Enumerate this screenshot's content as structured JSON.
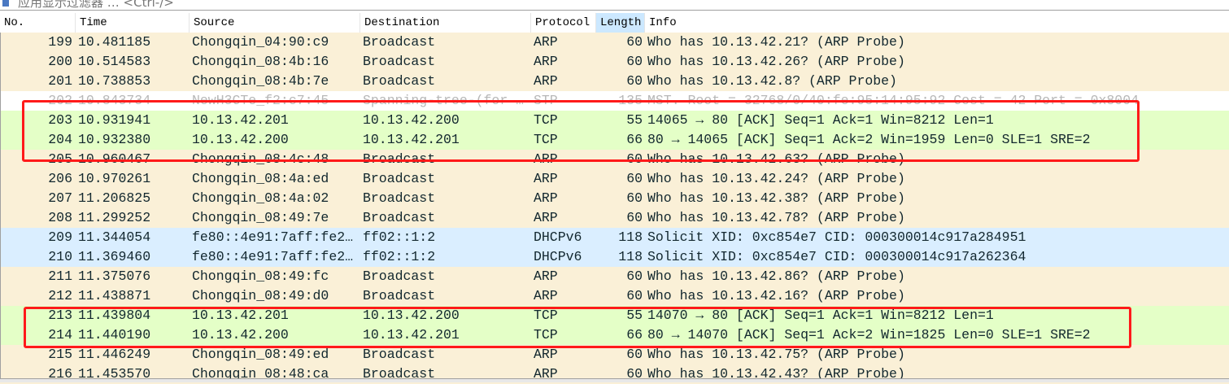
{
  "filter_bar": {
    "placeholder": "应用显示过滤器 … <Ctrl-/>",
    "icon": "bookmark-icon"
  },
  "columns": [
    {
      "label": "No.",
      "sorted": false
    },
    {
      "label": "Time",
      "sorted": false
    },
    {
      "label": "Source",
      "sorted": false
    },
    {
      "label": "Destination",
      "sorted": false
    },
    {
      "label": "Protocol",
      "sorted": false
    },
    {
      "label": "Length",
      "sorted": true
    },
    {
      "label": "Info",
      "sorted": false
    }
  ],
  "colors": {
    "ARP": "#faf0d7",
    "TCP": "#e4ffc7",
    "DHCPv6": "#daeeff",
    "STP": "#ffffff",
    "highlight_box": "#ff1a1a"
  },
  "packets": [
    {
      "no": "199",
      "time": "10.481185",
      "source": "Chongqin_04:90:c9",
      "destination": "Broadcast",
      "protocol": "ARP",
      "length": "60",
      "info": "Who has 10.13.42.21? (ARP Probe)"
    },
    {
      "no": "200",
      "time": "10.514583",
      "source": "Chongqin_08:4b:16",
      "destination": "Broadcast",
      "protocol": "ARP",
      "length": "60",
      "info": "Who has 10.13.42.26? (ARP Probe)"
    },
    {
      "no": "201",
      "time": "10.738853",
      "source": "Chongqin_08:4b:7e",
      "destination": "Broadcast",
      "protocol": "ARP",
      "length": "60",
      "info": "Who has 10.13.42.8? (ARP Probe)"
    },
    {
      "no": "202",
      "time": "10.843734",
      "source": "NewH3CTe_f2:c7:45",
      "destination": "Spanning-tree-(for …",
      "protocol": "STP",
      "length": "135",
      "info": "MST. Root = 32768/0/40:fe:95:14:95:92  Cost = 42  Port = 0x8004"
    },
    {
      "no": "203",
      "time": "10.931941",
      "source": "10.13.42.201",
      "destination": "10.13.42.200",
      "protocol": "TCP",
      "length": "55",
      "info": "14065 → 80 [ACK] Seq=1 Ack=1 Win=8212 Len=1"
    },
    {
      "no": "204",
      "time": "10.932380",
      "source": "10.13.42.200",
      "destination": "10.13.42.201",
      "protocol": "TCP",
      "length": "66",
      "info": "80 → 14065 [ACK] Seq=1 Ack=2 Win=1959 Len=0 SLE=1 SRE=2"
    },
    {
      "no": "205",
      "time": "10.960467",
      "source": "Chongqin_08:4c:48",
      "destination": "Broadcast",
      "protocol": "ARP",
      "length": "60",
      "info": "Who has 10.13.42.63? (ARP Probe)"
    },
    {
      "no": "206",
      "time": "10.970261",
      "source": "Chongqin_08:4a:ed",
      "destination": "Broadcast",
      "protocol": "ARP",
      "length": "60",
      "info": "Who has 10.13.42.24? (ARP Probe)"
    },
    {
      "no": "207",
      "time": "11.206825",
      "source": "Chongqin_08:4a:02",
      "destination": "Broadcast",
      "protocol": "ARP",
      "length": "60",
      "info": "Who has 10.13.42.38? (ARP Probe)"
    },
    {
      "no": "208",
      "time": "11.299252",
      "source": "Chongqin_08:49:7e",
      "destination": "Broadcast",
      "protocol": "ARP",
      "length": "60",
      "info": "Who has 10.13.42.78? (ARP Probe)"
    },
    {
      "no": "209",
      "time": "11.344054",
      "source": "fe80::4e91:7aff:fe2…",
      "destination": "ff02::1:2",
      "protocol": "DHCPv6",
      "length": "118",
      "info": "Solicit XID: 0xc854e7 CID: 000300014c917a284951"
    },
    {
      "no": "210",
      "time": "11.369460",
      "source": "fe80::4e91:7aff:fe2…",
      "destination": "ff02::1:2",
      "protocol": "DHCPv6",
      "length": "118",
      "info": "Solicit XID: 0xc854e7 CID: 000300014c917a262364"
    },
    {
      "no": "211",
      "time": "11.375076",
      "source": "Chongqin_08:49:fc",
      "destination": "Broadcast",
      "protocol": "ARP",
      "length": "60",
      "info": "Who has 10.13.42.86? (ARP Probe)"
    },
    {
      "no": "212",
      "time": "11.438871",
      "source": "Chongqin_08:49:d0",
      "destination": "Broadcast",
      "protocol": "ARP",
      "length": "60",
      "info": "Who has 10.13.42.16? (ARP Probe)"
    },
    {
      "no": "213",
      "time": "11.439804",
      "source": "10.13.42.201",
      "destination": "10.13.42.200",
      "protocol": "TCP",
      "length": "55",
      "info": "14070 → 80 [ACK] Seq=1 Ack=1 Win=8212 Len=1"
    },
    {
      "no": "214",
      "time": "11.440190",
      "source": "10.13.42.200",
      "destination": "10.13.42.201",
      "protocol": "TCP",
      "length": "66",
      "info": "80 → 14070 [ACK] Seq=1 Ack=2 Win=1825 Len=0 SLE=1 SRE=2"
    },
    {
      "no": "215",
      "time": "11.446249",
      "source": "Chongqin_08:49:ed",
      "destination": "Broadcast",
      "protocol": "ARP",
      "length": "60",
      "info": "Who has 10.13.42.75? (ARP Probe)"
    },
    {
      "no": "216",
      "time": "11.453570",
      "source": "Chongqin_08:48:ca",
      "destination": "Broadcast",
      "protocol": "ARP",
      "length": "60",
      "info": "Who has 10.13.42.43? (ARP Probe)"
    }
  ]
}
